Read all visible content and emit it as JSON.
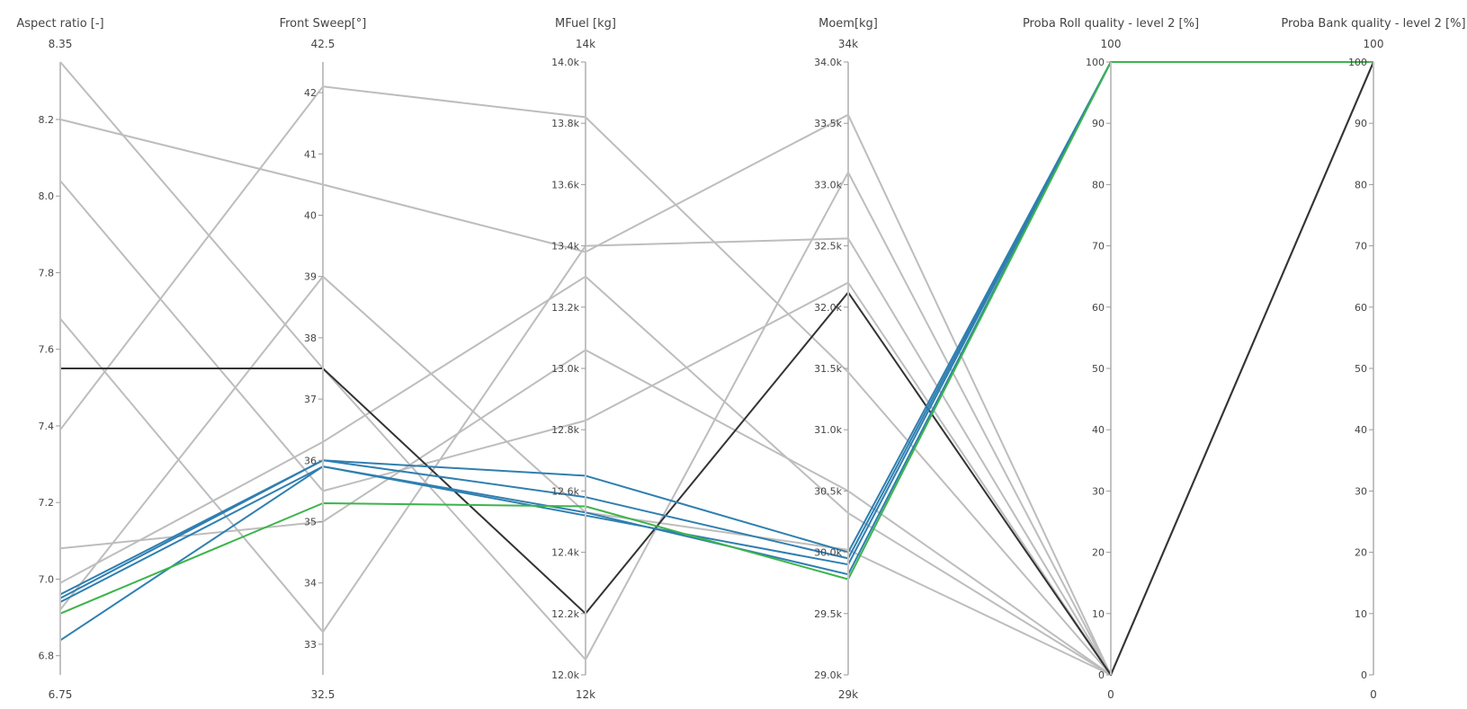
{
  "chart_data": {
    "type": "parallel_coordinates",
    "axes": [
      {
        "name": "Aspect ratio [-]",
        "range": [
          6.75,
          8.35
        ],
        "range_labels": {
          "top": "8.35",
          "bottom": "6.75"
        },
        "ticks": [
          6.8,
          7.0,
          7.2,
          7.4,
          7.6,
          7.8,
          8.0,
          8.2
        ],
        "tick_labels": [
          "6.8",
          "7.0",
          "7.2",
          "7.4",
          "7.6",
          "7.8",
          "8.0",
          "8.2"
        ]
      },
      {
        "name": "Front Sweep[°]",
        "range": [
          32.5,
          42.5
        ],
        "range_labels": {
          "top": "42.5",
          "bottom": "32.5"
        },
        "ticks": [
          33,
          34,
          35,
          36,
          37,
          38,
          39,
          40,
          41,
          42
        ],
        "tick_labels": [
          "33",
          "34",
          "35",
          "36",
          "37",
          "38",
          "39",
          "40",
          "41",
          "42"
        ]
      },
      {
        "name": "MFuel [kg]",
        "range": [
          12000,
          14000
        ],
        "range_labels": {
          "top": "14k",
          "bottom": "12k"
        },
        "ticks": [
          12000,
          12200,
          12400,
          12600,
          12800,
          13000,
          13200,
          13400,
          13600,
          13800,
          14000
        ],
        "tick_labels": [
          "12.0k",
          "12.2k",
          "12.4k",
          "12.6k",
          "12.8k",
          "13.0k",
          "13.2k",
          "13.4k",
          "13.6k",
          "13.8k",
          "14.0k"
        ]
      },
      {
        "name": "Moem[kg]",
        "range": [
          29000,
          34000
        ],
        "range_labels": {
          "top": "34k",
          "bottom": "29k"
        },
        "ticks": [
          29000,
          29500,
          30000,
          30500,
          31000,
          31500,
          32000,
          32500,
          33000,
          33500,
          34000
        ],
        "tick_labels": [
          "29.0k",
          "29.5k",
          "30.0k",
          "30.5k",
          "31.0k",
          "31.5k",
          "32.0k",
          "32.5k",
          "33.0k",
          "33.5k",
          "34.0k"
        ]
      },
      {
        "name": "Proba Roll quality - level 2 [%]",
        "range": [
          0,
          100
        ],
        "range_labels": {
          "top": "100",
          "bottom": "0"
        },
        "ticks": [
          0,
          10,
          20,
          30,
          40,
          50,
          60,
          70,
          80,
          90,
          100
        ],
        "tick_labels": [
          "0",
          "10",
          "20",
          "30",
          "40",
          "50",
          "60",
          "70",
          "80",
          "90",
          "100"
        ]
      },
      {
        "name": "Proba Bank quality - level 2 [%]",
        "range": [
          0,
          100
        ],
        "range_labels": {
          "top": "100",
          "bottom": "0"
        },
        "ticks": [
          0,
          10,
          20,
          30,
          40,
          50,
          60,
          70,
          80,
          90,
          100
        ],
        "tick_labels": [
          "0",
          "10",
          "20",
          "30",
          "40",
          "50",
          "60",
          "70",
          "80",
          "90",
          "100"
        ]
      }
    ],
    "colors": {
      "grey": "#bdbdbd",
      "dark": "#333333",
      "blue": "#2f7fb0",
      "green": "#3cb44b"
    },
    "series": [
      {
        "color": "grey",
        "values": [
          8.35,
          37.5,
          12.05,
          33.1,
          0,
          100
        ]
      },
      {
        "color": "grey",
        "values": [
          8.2,
          40.5,
          13.38,
          33.57,
          0,
          100
        ]
      },
      {
        "color": "grey",
        "values": [
          8.04,
          35.5,
          12.83,
          32.2,
          0,
          100
        ]
      },
      {
        "color": "grey",
        "values": [
          7.68,
          33.2,
          13.4,
          32.56,
          0,
          100
        ]
      },
      {
        "color": "grey",
        "values": [
          7.39,
          42.1,
          13.82,
          31.47,
          0,
          100
        ]
      },
      {
        "color": "grey",
        "values": [
          7.08,
          35.0,
          13.06,
          30.5,
          0,
          100
        ]
      },
      {
        "color": "grey",
        "values": [
          6.92,
          39.0,
          12.53,
          30.02,
          0,
          100
        ]
      },
      {
        "color": "grey",
        "values": [
          6.99,
          36.3,
          13.3,
          30.32,
          0,
          100
        ]
      },
      {
        "color": "dark",
        "values": [
          7.55,
          37.5,
          12.2,
          32.12,
          0,
          100
        ]
      },
      {
        "color": "blue",
        "values": [
          6.96,
          36.0,
          12.65,
          30.0,
          100,
          100
        ]
      },
      {
        "color": "blue",
        "values": [
          6.95,
          36.0,
          12.58,
          29.95,
          100,
          100
        ]
      },
      {
        "color": "blue",
        "values": [
          6.94,
          35.9,
          12.53,
          29.82,
          100,
          100
        ]
      },
      {
        "color": "blue",
        "values": [
          6.84,
          35.9,
          12.52,
          29.9,
          100,
          100
        ]
      },
      {
        "color": "green",
        "values": [
          6.91,
          35.3,
          12.55,
          29.78,
          100,
          100
        ]
      }
    ]
  }
}
